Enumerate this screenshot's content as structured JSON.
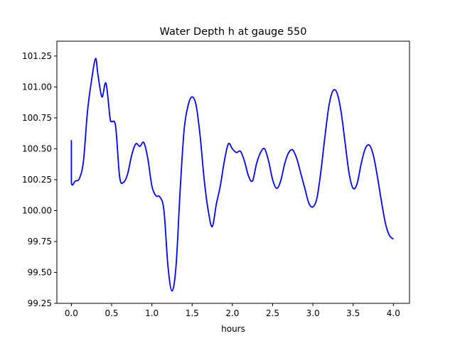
{
  "chart_data": {
    "type": "line",
    "title": "Water Depth h at gauge 550",
    "xlabel": "hours",
    "ylabel": "",
    "xlim": [
      -0.18,
      4.2
    ],
    "ylim": [
      99.25,
      101.37
    ],
    "x_ticks": [
      0.0,
      0.5,
      1.0,
      1.5,
      2.0,
      2.5,
      3.0,
      3.5,
      4.0
    ],
    "x_tick_labels": [
      "0.0",
      "0.5",
      "1.0",
      "1.5",
      "2.0",
      "2.5",
      "3.0",
      "3.5",
      "4.0"
    ],
    "y_ticks": [
      99.25,
      99.5,
      99.75,
      100.0,
      100.25,
      100.5,
      100.75,
      101.0,
      101.25
    ],
    "y_tick_labels": [
      "99.25",
      "99.50",
      "99.75",
      "100.00",
      "100.25",
      "100.50",
      "100.75",
      "101.00",
      "101.25"
    ],
    "grid": false,
    "legend": "none",
    "series": [
      {
        "color": "#0000ff",
        "x": [
          0.0,
          0.0,
          0.05,
          0.1,
          0.15,
          0.2,
          0.25,
          0.3,
          0.33,
          0.38,
          0.43,
          0.48,
          0.5,
          0.55,
          0.6,
          0.65,
          0.7,
          0.75,
          0.8,
          0.85,
          0.9,
          0.95,
          1.0,
          1.05,
          1.1,
          1.15,
          1.2,
          1.25,
          1.3,
          1.35,
          1.4,
          1.45,
          1.5,
          1.55,
          1.6,
          1.65,
          1.7,
          1.75,
          1.8,
          1.85,
          1.9,
          1.95,
          2.0,
          2.05,
          2.1,
          2.15,
          2.2,
          2.25,
          2.3,
          2.35,
          2.4,
          2.45,
          2.5,
          2.55,
          2.6,
          2.65,
          2.7,
          2.75,
          2.8,
          2.85,
          2.9,
          2.95,
          3.0,
          3.05,
          3.1,
          3.15,
          3.2,
          3.25,
          3.3,
          3.35,
          3.4,
          3.45,
          3.5,
          3.55,
          3.6,
          3.65,
          3.7,
          3.75,
          3.8,
          3.85,
          3.9,
          3.95,
          4.0
        ],
        "y": [
          100.57,
          100.23,
          100.24,
          100.26,
          100.4,
          100.8,
          101.05,
          101.23,
          101.1,
          100.92,
          101.03,
          100.75,
          100.72,
          100.68,
          100.27,
          100.23,
          100.3,
          100.45,
          100.54,
          100.52,
          100.55,
          100.42,
          100.2,
          100.12,
          100.11,
          100.0,
          99.55,
          99.35,
          99.55,
          100.15,
          100.65,
          100.85,
          100.92,
          100.85,
          100.6,
          100.25,
          100.0,
          99.87,
          100.05,
          100.2,
          100.4,
          100.54,
          100.5,
          100.47,
          100.48,
          100.4,
          100.28,
          100.24,
          100.38,
          100.47,
          100.5,
          100.4,
          100.25,
          100.18,
          100.24,
          100.38,
          100.47,
          100.49,
          100.42,
          100.3,
          100.18,
          100.06,
          100.03,
          100.1,
          100.32,
          100.6,
          100.85,
          100.97,
          100.95,
          100.8,
          100.55,
          100.3,
          100.18,
          100.22,
          100.38,
          100.5,
          100.53,
          100.45,
          100.28,
          100.08,
          99.9,
          99.8,
          99.77
        ]
      }
    ]
  }
}
